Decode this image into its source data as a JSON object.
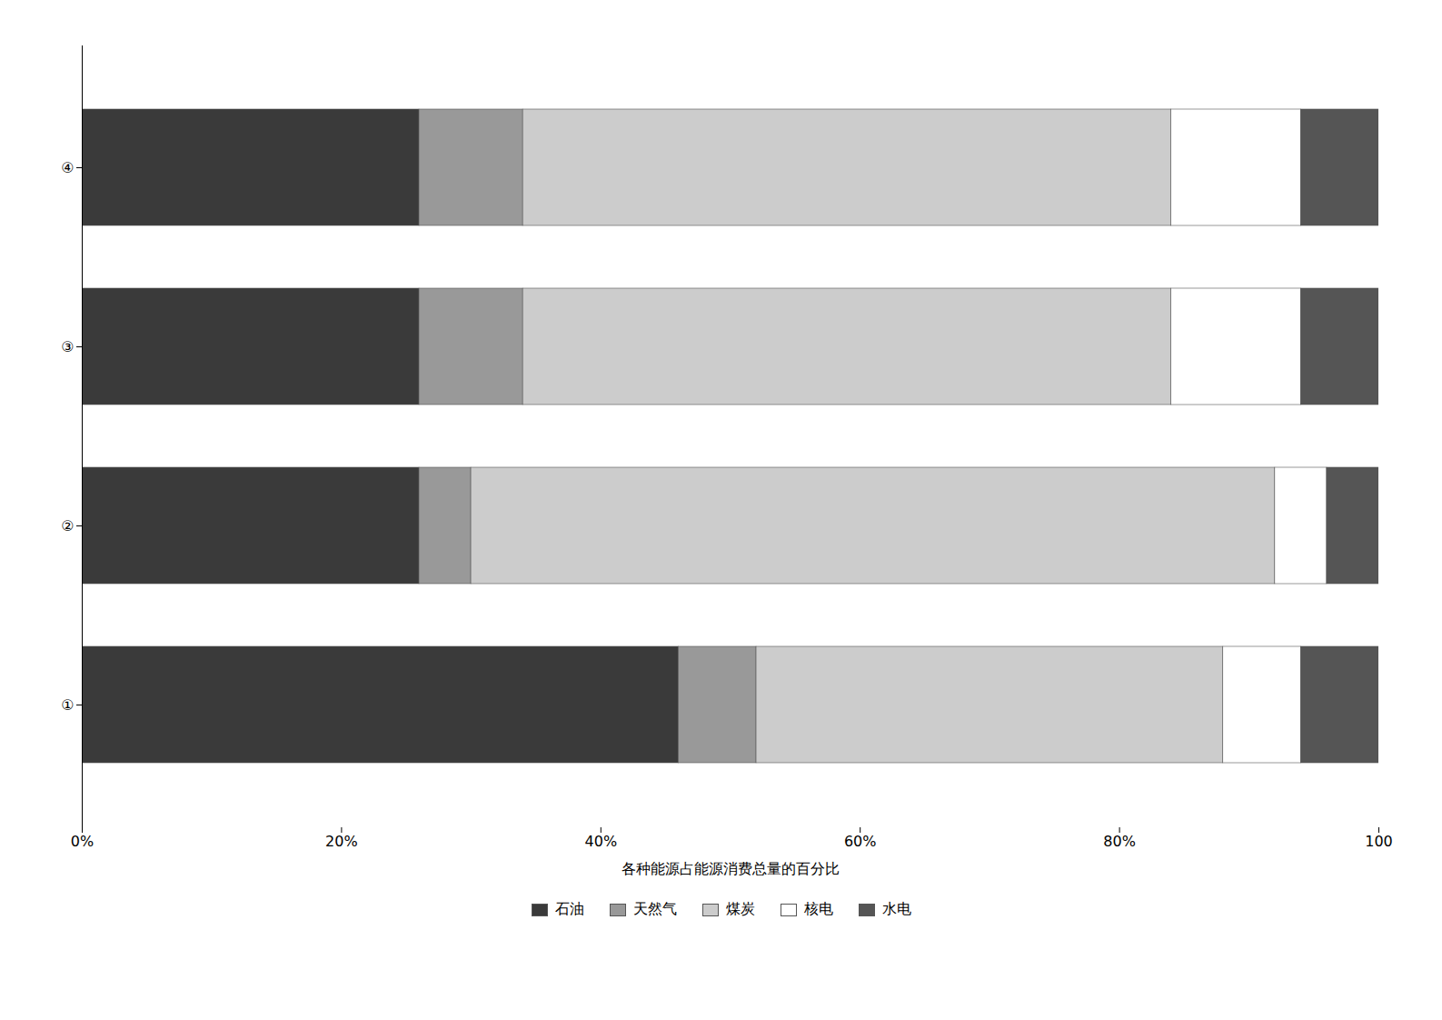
{
  "chart_data": {
    "type": "bar",
    "orientation": "horizontal",
    "stacked": true,
    "categories": [
      "①",
      "②",
      "③",
      "④"
    ],
    "series": [
      {
        "name": "石油",
        "color": "#3a3a3a",
        "values": [
          46,
          26,
          26,
          26
        ]
      },
      {
        "name": "天然气",
        "color": "#999999",
        "values": [
          6,
          4,
          8,
          8
        ]
      },
      {
        "name": "煤炭",
        "color": "#cccccc",
        "values": [
          36,
          62,
          50,
          50
        ]
      },
      {
        "name": "核电",
        "color": "#ffffff",
        "values": [
          6,
          4,
          10,
          10
        ]
      },
      {
        "name": "水电",
        "color": "#555555",
        "values": [
          6,
          4,
          6,
          6
        ]
      }
    ],
    "xlabel": "各种能源占能源消费总量的百分比",
    "xlim": [
      0,
      100
    ],
    "xticks": [
      {
        "value": 0,
        "label": "0%"
      },
      {
        "value": 20,
        "label": "20%"
      },
      {
        "value": 40,
        "label": "40%"
      },
      {
        "value": 60,
        "label": "60%"
      },
      {
        "value": 80,
        "label": "80%"
      },
      100
    ],
    "grid": false,
    "legend": "bottom"
  }
}
